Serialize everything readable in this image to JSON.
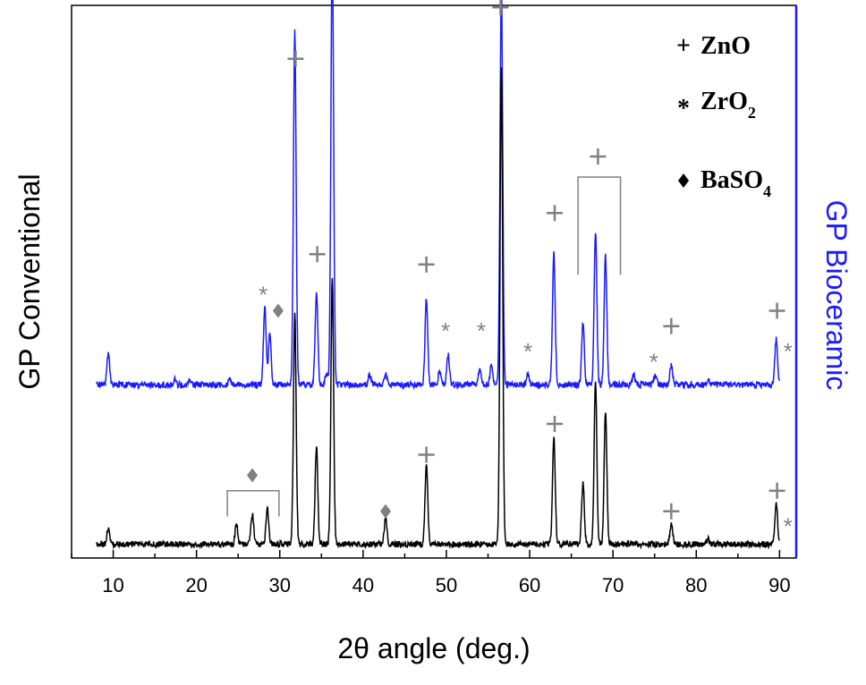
{
  "chart_data": {
    "type": "line",
    "xlabel": "2θ angle (deg.)",
    "ylabel_left": "GP Conventional",
    "ylabel_right": "GP Bioceramic",
    "xlim": [
      5,
      92
    ],
    "xticks": [
      10,
      20,
      30,
      40,
      50,
      60,
      70,
      80,
      90
    ],
    "colors": {
      "conventional": "#000000",
      "bioceramic": "#1a1aff",
      "markers": "#808080",
      "right_axis": "#1a1aff"
    },
    "legend": {
      "placement": "top-right",
      "items": [
        {
          "symbol": "+",
          "label": "ZnO",
          "sub": ""
        },
        {
          "symbol": "*",
          "label": "ZrO",
          "sub": "2"
        },
        {
          "symbol": "◆",
          "label": "BaSO",
          "sub": "4"
        }
      ]
    },
    "series": [
      {
        "name": "GP Bioceramic",
        "baseline": 0.31,
        "peaks": [
          [
            9.4,
            0.06
          ],
          [
            17.4,
            0.01
          ],
          [
            19.2,
            0.01
          ],
          [
            24.0,
            0.01
          ],
          [
            28.2,
            0.15
          ],
          [
            28.8,
            0.1
          ],
          [
            31.8,
            0.69
          ],
          [
            34.4,
            0.18
          ],
          [
            35.6,
            0.02
          ],
          [
            36.3,
            0.86
          ],
          [
            40.8,
            0.02
          ],
          [
            42.7,
            0.02
          ],
          [
            47.6,
            0.17
          ],
          [
            49.2,
            0.03
          ],
          [
            50.2,
            0.06
          ],
          [
            54.0,
            0.03
          ],
          [
            55.4,
            0.04
          ],
          [
            56.6,
            0.78
          ],
          [
            59.8,
            0.02
          ],
          [
            62.9,
            0.26
          ],
          [
            66.4,
            0.12
          ],
          [
            67.9,
            0.3
          ],
          [
            69.1,
            0.25
          ],
          [
            72.5,
            0.02
          ],
          [
            75.1,
            0.02
          ],
          [
            77.0,
            0.04
          ],
          [
            81.4,
            0.01
          ],
          [
            89.6,
            0.09
          ]
        ]
      },
      {
        "name": "GP Conventional",
        "baseline": 0.0,
        "peaks": [
          [
            9.4,
            0.03
          ],
          [
            24.8,
            0.04
          ],
          [
            26.7,
            0.06
          ],
          [
            28.5,
            0.07
          ],
          [
            31.8,
            0.45
          ],
          [
            34.4,
            0.19
          ],
          [
            36.3,
            0.52
          ],
          [
            42.7,
            0.05
          ],
          [
            47.6,
            0.16
          ],
          [
            56.6,
            0.93
          ],
          [
            62.9,
            0.21
          ],
          [
            66.4,
            0.12
          ],
          [
            67.9,
            0.32
          ],
          [
            69.1,
            0.26
          ],
          [
            77.0,
            0.04
          ],
          [
            81.4,
            0.01
          ],
          [
            89.6,
            0.08
          ]
        ]
      }
    ],
    "annotations": [
      {
        "series": "GP Bioceramic",
        "symbol": "+",
        "x": 31.9,
        "y": 0.95
      },
      {
        "series": "GP Bioceramic",
        "symbol": "+",
        "x": 36.3,
        "y": 1.13
      },
      {
        "series": "GP Bioceramic",
        "symbol": "+",
        "x": 34.5,
        "y": 0.57
      },
      {
        "series": "GP Bioceramic",
        "symbol": "+",
        "x": 47.6,
        "y": 0.55
      },
      {
        "series": "GP Bioceramic",
        "symbol": "+",
        "x": 56.5,
        "y": 1.05
      },
      {
        "series": "GP Bioceramic",
        "symbol": "+",
        "x": 63.0,
        "y": 0.65
      },
      {
        "series": "GP Bioceramic",
        "symbol": "+",
        "x": 68.2,
        "y": 0.76
      },
      {
        "series": "GP Bioceramic",
        "symbol": "+",
        "x": 77.0,
        "y": 0.43
      },
      {
        "series": "GP Bioceramic",
        "symbol": "+",
        "x": 89.7,
        "y": 0.46
      },
      {
        "series": "GP Bioceramic",
        "symbol": "*",
        "x": 28.0,
        "y": 0.5
      },
      {
        "series": "GP Bioceramic",
        "symbol": "*",
        "x": 49.9,
        "y": 0.43
      },
      {
        "series": "GP Bioceramic",
        "symbol": "*",
        "x": 54.2,
        "y": 0.43
      },
      {
        "series": "GP Bioceramic",
        "symbol": "*",
        "x": 59.8,
        "y": 0.39
      },
      {
        "series": "GP Bioceramic",
        "symbol": "*",
        "x": 74.9,
        "y": 0.37
      },
      {
        "series": "GP Bioceramic",
        "symbol": "*",
        "x": 91.0,
        "y": 0.39
      },
      {
        "series": "GP Bioceramic",
        "symbol": "◆",
        "x": 29.8,
        "y": 0.46
      },
      {
        "series": "GP Conventional",
        "symbol": "+",
        "x": 47.6,
        "y": 0.18
      },
      {
        "series": "GP Conventional",
        "symbol": "+",
        "x": 63.0,
        "y": 0.24
      },
      {
        "series": "GP Conventional",
        "symbol": "+",
        "x": 77.0,
        "y": 0.07
      },
      {
        "series": "GP Conventional",
        "symbol": "+",
        "x": 89.7,
        "y": 0.11
      },
      {
        "series": "GP Conventional",
        "symbol": "*",
        "x": 91.0,
        "y": 0.05
      },
      {
        "series": "GP Conventional",
        "symbol": "◆",
        "x": 26.7,
        "y": 0.14
      },
      {
        "series": "GP Conventional",
        "symbol": "◆",
        "x": 42.7,
        "y": 0.07
      }
    ],
    "brackets": [
      {
        "series": "GP Bioceramic",
        "x_start": 65.8,
        "x_end": 70.9,
        "y_top": 0.72,
        "y_bottom": 0.53
      },
      {
        "series": "GP Conventional",
        "x_start": 23.7,
        "x_end": 29.9,
        "y_top": 0.11,
        "y_bottom": 0.06
      }
    ]
  }
}
